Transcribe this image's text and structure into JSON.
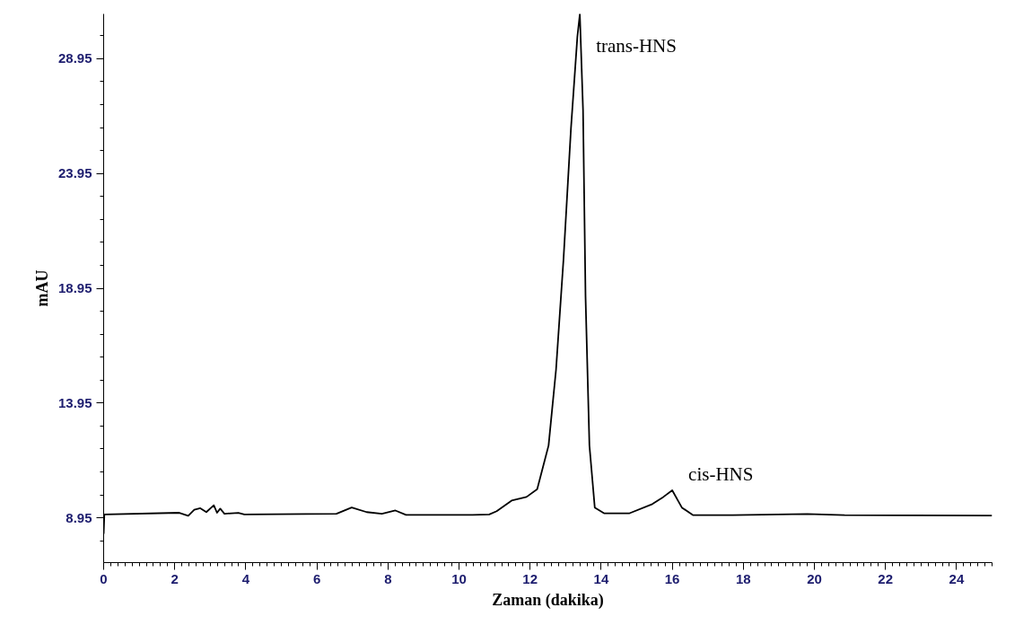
{
  "chart_data": {
    "type": "line",
    "xlabel": "Zaman (dakika)",
    "ylabel": "mAU",
    "xlim": [
      0,
      25
    ],
    "ylim": [
      7.0,
      30.9
    ],
    "xticks": [
      0,
      2,
      4,
      6,
      8,
      10,
      12,
      14,
      16,
      18,
      20,
      22,
      24
    ],
    "yticks": [
      8.95,
      13.95,
      18.95,
      23.95,
      28.95
    ],
    "grid": false,
    "marker": "none",
    "line_style": "solid",
    "series": [
      {
        "color": "#000000",
        "x": [
          0,
          0.02,
          2.13,
          2.38,
          2.55,
          2.72,
          2.89,
          3.1,
          3.19,
          3.28,
          3.4,
          3.79,
          3.96,
          6.55,
          6.98,
          7.4,
          7.83,
          8.21,
          8.51,
          10.38,
          10.85,
          11.06,
          11.48,
          11.9,
          12.2,
          12.52,
          12.73,
          12.94,
          13.15,
          13.33,
          13.4,
          13.49,
          13.56,
          13.67,
          13.82,
          14.08,
          14.8,
          15.44,
          15.75,
          16.0,
          16.27,
          16.58,
          17.7,
          19.8,
          20.85,
          25
        ],
        "values": [
          8.25,
          9.1,
          9.17,
          9.04,
          9.3,
          9.37,
          9.2,
          9.5,
          9.17,
          9.35,
          9.13,
          9.17,
          9.1,
          9.13,
          9.4,
          9.2,
          9.13,
          9.27,
          9.08,
          9.08,
          9.1,
          9.24,
          9.7,
          9.86,
          10.2,
          12.1,
          15.4,
          20.2,
          25.9,
          29.9,
          30.9,
          26.7,
          18.6,
          12.1,
          9.4,
          9.15,
          9.15,
          9.55,
          9.86,
          10.15,
          9.4,
          9.07,
          9.07,
          9.12,
          9.07,
          9.05
        ]
      }
    ],
    "annotations": [
      {
        "text": "trans-HNS",
        "x": 13.4,
        "y": 30.9
      },
      {
        "text": "cis-HNS",
        "x": 16.0,
        "y": 10.15
      }
    ]
  }
}
